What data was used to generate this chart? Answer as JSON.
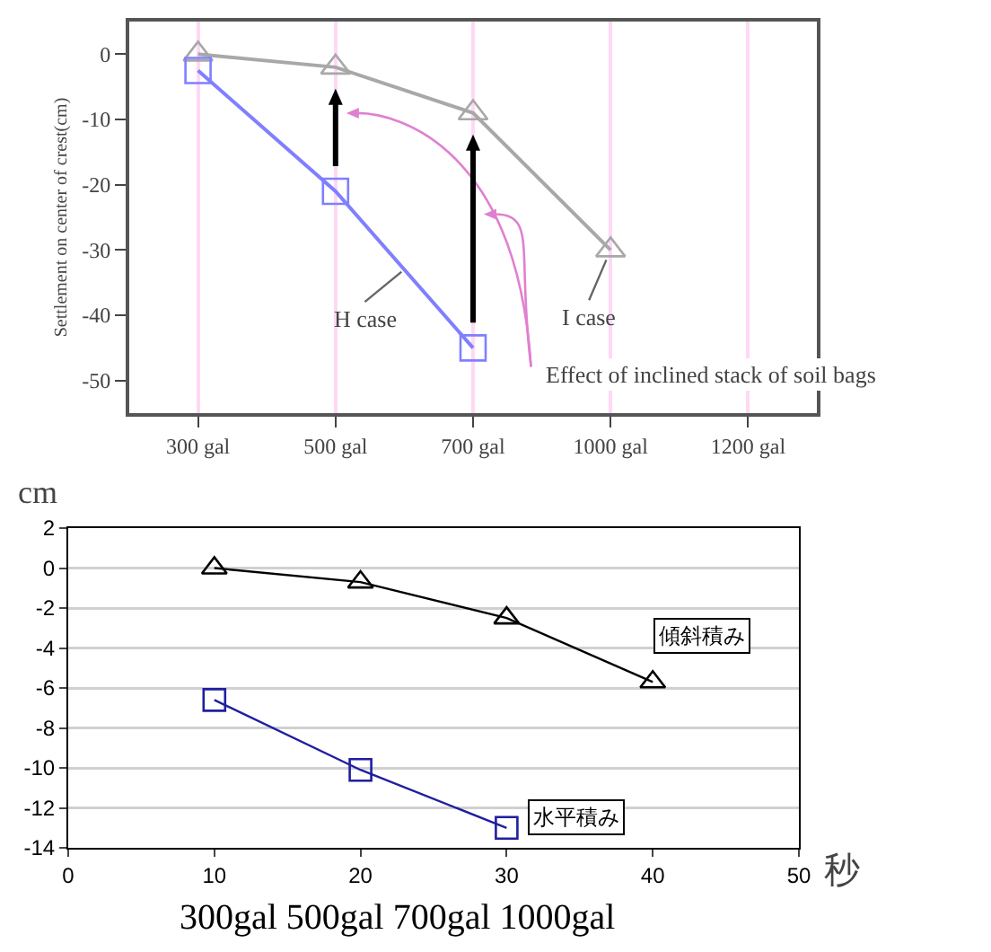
{
  "chart_data": [
    {
      "type": "line",
      "ylabel": "Settlement on center of crest(cm)",
      "categories": [
        "300 gal",
        "500 gal",
        "700 gal",
        "1000 gal",
        "1200 gal"
      ],
      "series": [
        {
          "name": "I case",
          "color": "#a8a8a8",
          "marker": "triangle",
          "values": [
            0,
            -2,
            -9,
            -30,
            null
          ]
        },
        {
          "name": "H case",
          "color": "#7f7fff",
          "marker": "square",
          "values": [
            -2.5,
            -21,
            -45,
            null,
            null
          ]
        }
      ],
      "ylim": [
        -55,
        5
      ],
      "yticks": [
        0,
        -10,
        -20,
        -30,
        -40,
        -50
      ],
      "grid": "x",
      "annotations": [
        "Effect of inclined stack of soil bags"
      ]
    },
    {
      "type": "line",
      "ylabel": "cm",
      "xlabel": "秒",
      "x": [
        10,
        20,
        30,
        40
      ],
      "series": [
        {
          "name": "傾斜積み",
          "color": "#000000",
          "marker": "triangle",
          "values": [
            0,
            -0.7,
            -2.5,
            -5.7
          ]
        },
        {
          "name": "水平積み",
          "color": "#1f1fa0",
          "marker": "square",
          "values": [
            -6.6,
            -10.1,
            -13,
            null
          ]
        }
      ],
      "xlim": [
        0,
        50
      ],
      "xticks": [
        0,
        10,
        20,
        30,
        40,
        50
      ],
      "ylim": [
        -14,
        2
      ],
      "yticks": [
        2,
        0,
        -2,
        -4,
        -6,
        -8,
        -10,
        -12,
        -14
      ],
      "grid": "y",
      "annotations": [
        "300gal 500gal 700gal 1000gal"
      ]
    }
  ]
}
